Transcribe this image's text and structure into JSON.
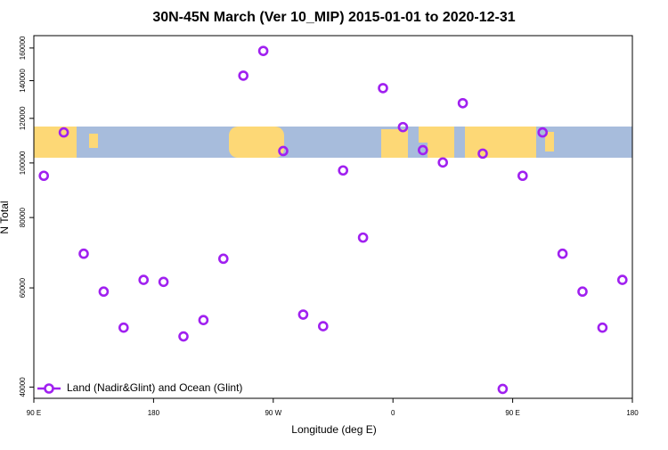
{
  "chart_data": {
    "type": "scatter",
    "title": "30N-45N March (Ver 10_MIP)   2015-01-01 to 2020-12-31",
    "x_label": "Longitude (deg E)",
    "y_label": "N Total",
    "xlim": [
      90,
      540
    ],
    "xticks": [
      {
        "value": 90,
        "label": "90 E"
      },
      180,
      {
        "value": 270,
        "label": "90 W"
      },
      {
        "value": 360,
        "label": "0"
      },
      {
        "value": 450,
        "label": "90 E"
      },
      {
        "value": 540,
        "label": "180"
      }
    ],
    "ylim": [
      38200,
      168300
    ],
    "ylog": true,
    "yticks": [
      40000,
      60000,
      80000,
      100000,
      120000,
      140000,
      160000
    ],
    "legend": "lower left",
    "series": [
      {
        "name": "Land (Nadir&Glint) and Ocean (Glint)",
        "color": "#a020f0",
        "x": [
          97.5,
          112.5,
          127.5,
          142.5,
          157.5,
          172.5,
          187.5,
          202.5,
          217.5,
          232.5,
          247.5,
          262.5,
          277.5,
          292.5,
          307.5,
          322.5,
          337.5,
          352.5,
          367.5,
          382.5,
          397.5,
          412.5,
          427.5,
          442.5,
          457.5,
          472.5,
          487.5,
          502.5,
          517.5,
          532.5
        ],
        "values": [
          94900,
          113300,
          69000,
          59100,
          51000,
          62000,
          61500,
          49200,
          52600,
          67600,
          142900,
          158100,
          105000,
          53800,
          51300,
          97000,
          73700,
          135800,
          115800,
          105400,
          100200,
          127700,
          103900,
          39700,
          94900,
          113300,
          69000,
          59100,
          51000,
          62000
        ]
      }
    ]
  }
}
